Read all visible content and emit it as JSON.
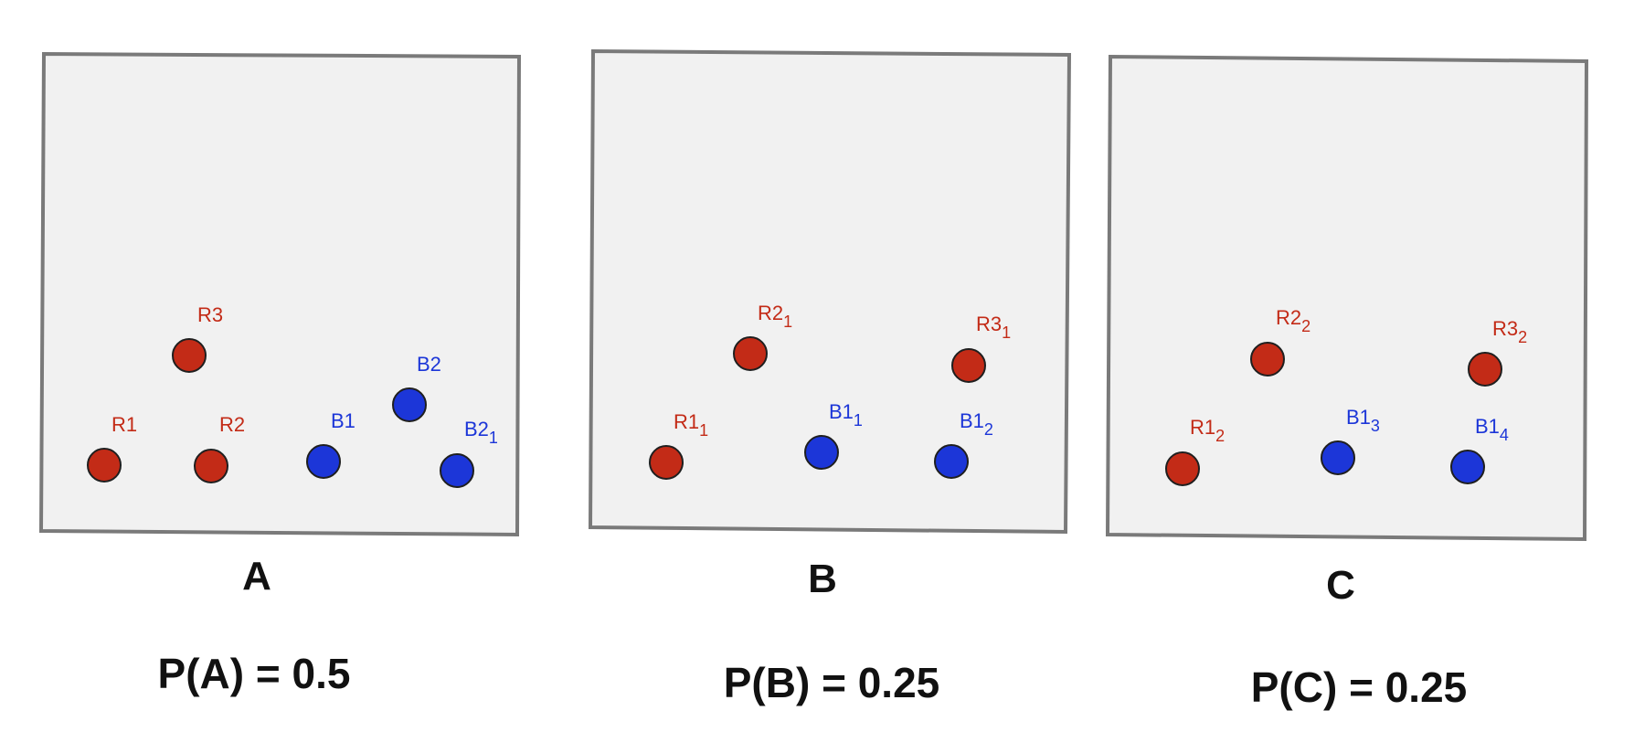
{
  "panels": [
    {
      "id": "A",
      "letter": "A",
      "probability_text": "P(A) = 0.5",
      "balls": [
        {
          "color": "red",
          "base": "R3",
          "sub": ""
        },
        {
          "color": "red",
          "base": "R1",
          "sub": ""
        },
        {
          "color": "red",
          "base": "R2",
          "sub": ""
        },
        {
          "color": "blue",
          "base": "B1",
          "sub": ""
        },
        {
          "color": "blue",
          "base": "B2",
          "sub": ""
        },
        {
          "color": "blue",
          "base": "B2",
          "sub": "1"
        }
      ]
    },
    {
      "id": "B",
      "letter": "B",
      "probability_text": "P(B) = 0.25",
      "balls": [
        {
          "color": "red",
          "base": "R2",
          "sub": "1"
        },
        {
          "color": "red",
          "base": "R3",
          "sub": "1"
        },
        {
          "color": "red",
          "base": "R1",
          "sub": "1"
        },
        {
          "color": "blue",
          "base": "B1",
          "sub": "1"
        },
        {
          "color": "blue",
          "base": "B1",
          "sub": "2"
        }
      ]
    },
    {
      "id": "C",
      "letter": "C",
      "probability_text": "P(C) = 0.25",
      "balls": [
        {
          "color": "red",
          "base": "R2",
          "sub": "2"
        },
        {
          "color": "red",
          "base": "R3",
          "sub": "2"
        },
        {
          "color": "red",
          "base": "R1",
          "sub": "2"
        },
        {
          "color": "blue",
          "base": "B1",
          "sub": "3"
        },
        {
          "color": "blue",
          "base": "B1",
          "sub": "4"
        }
      ]
    }
  ],
  "colors": {
    "red": "#c32b17",
    "blue": "#1c36d8",
    "panel_fill": "#f1f1f1",
    "panel_border": "#7a7a7a"
  }
}
